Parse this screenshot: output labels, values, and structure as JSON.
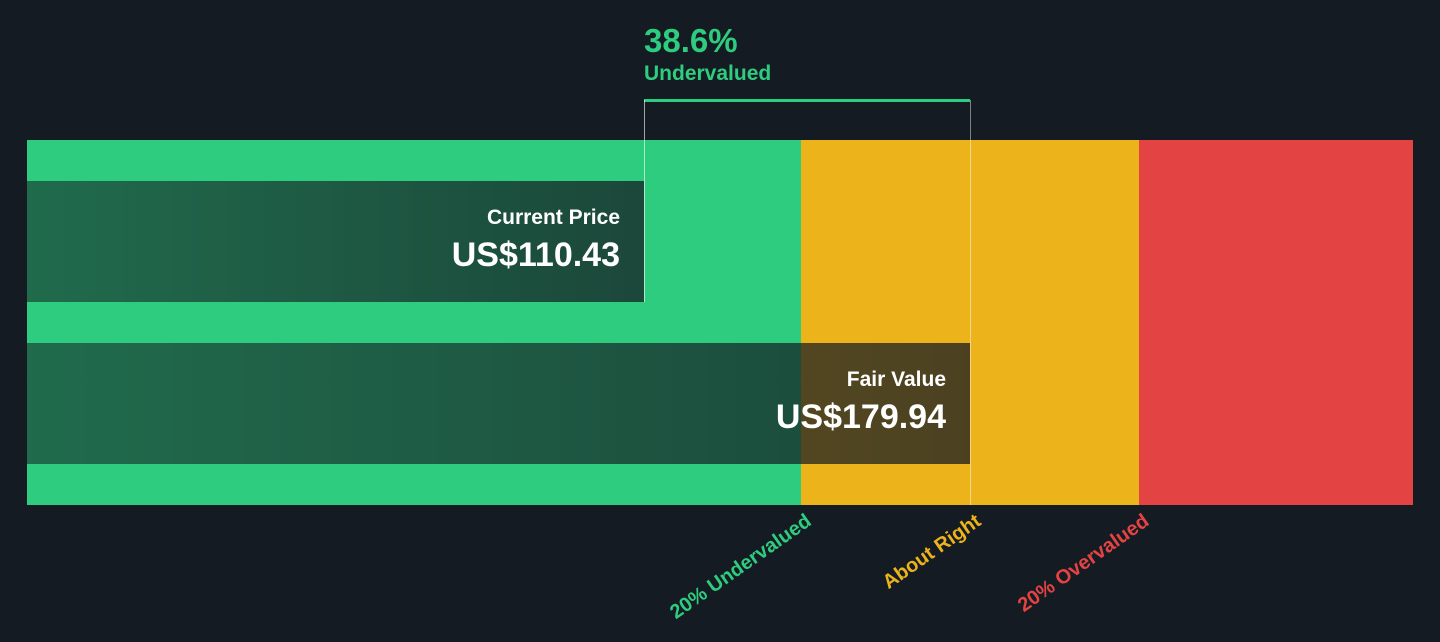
{
  "chart_data": {
    "type": "bar",
    "currency": "US$",
    "current_price": {
      "label": "Current Price",
      "value": 110.43,
      "display": "US$110.43"
    },
    "fair_value": {
      "label": "Fair Value",
      "value": 179.94,
      "display": "US$179.94"
    },
    "difference": {
      "percent": "38.6%",
      "label": "Undervalued"
    },
    "zones": [
      {
        "name": "20% Undervalued",
        "color": "#2ecc7f"
      },
      {
        "name": "About Right",
        "color": "#ecb31b"
      },
      {
        "name": "20% Overvalued",
        "color": "#e44343"
      }
    ]
  }
}
